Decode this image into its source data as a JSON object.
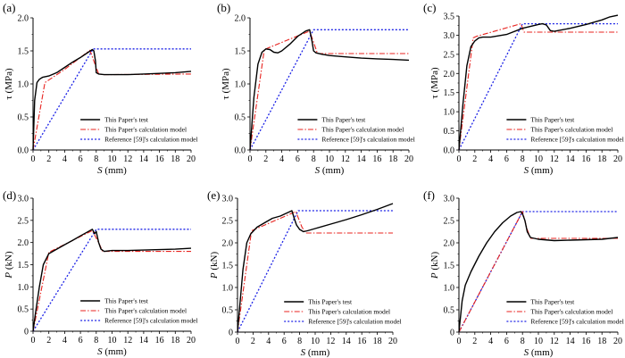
{
  "legend_labels": {
    "test": "This Paper's test",
    "model": "This Paper's calculation model",
    "ref": "Reference [59]'s calculation model"
  },
  "series_styles": {
    "test": {
      "color": "#000000",
      "dash": "none",
      "width": 1.4
    },
    "model": {
      "color": "#e8231f",
      "dash": "6,2,1.5,2",
      "width": 1.1
    },
    "ref": {
      "color": "#1d23e6",
      "dash": "2,2",
      "width": 1.3
    }
  },
  "chart_data": [
    {
      "panel_label": "(a)",
      "type": "line",
      "xlabel_italic": "S",
      "xlabel_unit": " (mm)",
      "ylabel_italic": "",
      "ylabel": "τ (MPa)",
      "xlim": [
        0,
        20
      ],
      "ylim": [
        0,
        2.0
      ],
      "xticks": [
        "0",
        "2",
        "4",
        "6",
        "8",
        "10",
        "12",
        "14",
        "16",
        "18",
        "20"
      ],
      "yticks": [
        "0.0",
        "0.5",
        "1.0",
        "1.5",
        "2.0"
      ],
      "legend_location": "lower-right",
      "series": [
        {
          "name": "test",
          "x": [
            0,
            0.2,
            0.5,
            0.8,
            1.2,
            2,
            3,
            4,
            5,
            6,
            7,
            7.5,
            7.7,
            7.9,
            8,
            8.3,
            9,
            10,
            12,
            14,
            16,
            18,
            19,
            20
          ],
          "y": [
            0,
            0.75,
            1.02,
            1.07,
            1.1,
            1.12,
            1.17,
            1.25,
            1.33,
            1.4,
            1.48,
            1.52,
            1.5,
            1.35,
            1.17,
            1.15,
            1.14,
            1.14,
            1.14,
            1.15,
            1.16,
            1.17,
            1.18,
            1.19
          ]
        },
        {
          "name": "model",
          "x": [
            0,
            1.5,
            2,
            4,
            7.2,
            8.3,
            9,
            20
          ],
          "y": [
            0,
            1.02,
            1.06,
            1.22,
            1.51,
            1.15,
            1.14,
            1.15
          ]
        },
        {
          "name": "ref",
          "x": [
            0,
            7.6,
            20
          ],
          "y": [
            0,
            1.53,
            1.53
          ]
        }
      ]
    },
    {
      "panel_label": "(b)",
      "type": "line",
      "xlabel_italic": "S",
      "xlabel_unit": " (mm)",
      "ylabel_italic": "",
      "ylabel": "τ (MPa)",
      "xlim": [
        0,
        20
      ],
      "ylim": [
        0,
        2.0
      ],
      "xticks": [
        "0",
        "2",
        "4",
        "6",
        "8",
        "10",
        "12",
        "14",
        "16",
        "18",
        "20"
      ],
      "yticks": [
        "0.0",
        "0.5",
        "1.0",
        "1.5",
        "2.0"
      ],
      "legend_location": "lower-right",
      "series": [
        {
          "name": "test",
          "x": [
            0,
            0.5,
            1,
            1.5,
            2,
            2.5,
            3,
            3.5,
            4,
            5,
            6,
            7,
            7.5,
            7.8,
            8,
            8.3,
            9,
            10,
            12,
            14,
            16,
            18,
            20
          ],
          "y": [
            0,
            0.8,
            1.3,
            1.48,
            1.53,
            1.52,
            1.48,
            1.47,
            1.5,
            1.6,
            1.72,
            1.8,
            1.82,
            1.65,
            1.5,
            1.47,
            1.45,
            1.43,
            1.41,
            1.39,
            1.38,
            1.37,
            1.36
          ]
        },
        {
          "name": "model",
          "x": [
            0,
            1.8,
            2.2,
            7.5,
            8.5,
            9,
            20
          ],
          "y": [
            0,
            1.52,
            1.54,
            1.8,
            1.46,
            1.46,
            1.46
          ]
        },
        {
          "name": "ref",
          "x": [
            0,
            8,
            20
          ],
          "y": [
            0,
            1.82,
            1.82
          ]
        }
      ]
    },
    {
      "panel_label": "(c)",
      "type": "line",
      "xlabel_italic": "S",
      "xlabel_unit": " (mm)",
      "ylabel_italic": "",
      "ylabel": "τ (MPa)",
      "xlim": [
        0,
        20
      ],
      "ylim": [
        0,
        3.5
      ],
      "xticks": [
        "0",
        "2",
        "4",
        "6",
        "8",
        "10",
        "12",
        "14",
        "16",
        "18",
        "20"
      ],
      "yticks": [
        "0.0",
        "0.5",
        "1.0",
        "1.5",
        "2.0",
        "2.5",
        "3.0",
        "3.5"
      ],
      "legend_location": "lower-right",
      "series": [
        {
          "name": "test",
          "x": [
            0,
            0.5,
            1,
            1.5,
            2,
            2.5,
            3,
            4,
            6,
            8,
            10,
            10.5,
            11,
            11.5,
            12,
            14,
            16,
            18,
            19,
            20
          ],
          "y": [
            0,
            1.2,
            2.2,
            2.7,
            2.85,
            2.93,
            2.95,
            2.95,
            3.02,
            3.18,
            3.28,
            3.3,
            3.27,
            3.12,
            3.1,
            3.18,
            3.28,
            3.4,
            3.48,
            3.52
          ]
        },
        {
          "name": "model",
          "x": [
            0,
            1.8,
            2.2,
            7.8,
            8.2,
            20
          ],
          "y": [
            0,
            2.93,
            2.97,
            3.3,
            3.08,
            3.08
          ]
        },
        {
          "name": "ref",
          "x": [
            0,
            8,
            20
          ],
          "y": [
            0,
            3.3,
            3.3
          ]
        }
      ]
    },
    {
      "panel_label": "(d)",
      "type": "line",
      "xlabel_italic": "S",
      "xlabel_unit": " (mm)",
      "ylabel_italic": "P",
      "ylabel": " (kN)",
      "xlim": [
        0,
        20
      ],
      "ylim": [
        0,
        3.0
      ],
      "xticks": [
        "0",
        "2",
        "4",
        "6",
        "8",
        "10",
        "12",
        "14",
        "16",
        "18",
        "20"
      ],
      "yticks": [
        "0",
        "0.5",
        "1.0",
        "1.5",
        "2.0",
        "2.5",
        "3.0"
      ],
      "legend_location": "lower-right",
      "series": [
        {
          "name": "test",
          "x": [
            0,
            0.3,
            0.8,
            1.3,
            2,
            3,
            4,
            5,
            6,
            7,
            7.5,
            7.8,
            8,
            8.3,
            8.6,
            9,
            10,
            12,
            14,
            16,
            18,
            20
          ],
          "y": [
            0,
            0.4,
            1.0,
            1.5,
            1.75,
            1.85,
            1.95,
            2.05,
            2.15,
            2.25,
            2.3,
            2.2,
            2.25,
            2.0,
            1.85,
            1.8,
            1.82,
            1.82,
            1.83,
            1.84,
            1.85,
            1.87
          ]
        },
        {
          "name": "model",
          "x": [
            0,
            2,
            7.5,
            8.3,
            8.8,
            20
          ],
          "y": [
            0,
            1.78,
            2.27,
            2.0,
            1.8,
            1.8
          ]
        },
        {
          "name": "ref",
          "x": [
            0,
            8,
            20
          ],
          "y": [
            0,
            2.3,
            2.3
          ]
        }
      ]
    },
    {
      "panel_label": "(e)",
      "type": "line",
      "xlabel_italic": "S",
      "xlabel_unit": " (mm)",
      "ylabel_italic": "P",
      "ylabel": " (kN)",
      "xlim": [
        0,
        20
      ],
      "ylim": [
        0,
        3.0
      ],
      "xticks": [
        "0",
        "2",
        "4",
        "6",
        "8",
        "10",
        "12",
        "14",
        "16",
        "18",
        "20"
      ],
      "yticks": [
        "0",
        "0.5",
        "1.0",
        "1.5",
        "2.0",
        "2.5",
        "3.0"
      ],
      "legend_location": "lower-right",
      "series": [
        {
          "name": "test",
          "x": [
            0,
            0.3,
            0.7,
            1.2,
            1.7,
            2.5,
            3.5,
            4.5,
            5.5,
            6.5,
            7,
            7.3,
            7.6,
            8,
            8.5,
            9,
            10,
            12,
            14,
            16,
            18,
            20
          ],
          "y": [
            0,
            0.6,
            1.4,
            2.0,
            2.2,
            2.35,
            2.45,
            2.55,
            2.6,
            2.68,
            2.72,
            2.55,
            2.4,
            2.3,
            2.25,
            2.27,
            2.32,
            2.42,
            2.52,
            2.63,
            2.75,
            2.88
          ]
        },
        {
          "name": "model",
          "x": [
            0,
            1.8,
            2.2,
            7.5,
            8.3,
            8.8,
            20
          ],
          "y": [
            0,
            2.27,
            2.3,
            2.7,
            2.35,
            2.22,
            2.22
          ]
        },
        {
          "name": "ref",
          "x": [
            0,
            7.8,
            20
          ],
          "y": [
            0,
            2.72,
            2.72
          ]
        }
      ]
    },
    {
      "panel_label": "(f)",
      "type": "line",
      "xlabel_italic": "S",
      "xlabel_unit": " (mm)",
      "ylabel_italic": "P",
      "ylabel": " (kN)",
      "xlim": [
        0,
        20
      ],
      "ylim": [
        0,
        3.0
      ],
      "xticks": [
        "0",
        "2",
        "4",
        "6",
        "8",
        "10",
        "12",
        "14",
        "16",
        "18",
        "20"
      ],
      "yticks": [
        "0",
        "0.5",
        "1.0",
        "1.5",
        "2.0",
        "2.5",
        "3.0"
      ],
      "legend_location": "lower-right",
      "series": [
        {
          "name": "test",
          "x": [
            0,
            0.4,
            0.8,
            1.5,
            2.5,
            3.5,
            4.5,
            5.5,
            6.5,
            7.3,
            7.8,
            8,
            8.3,
            8.6,
            9,
            10,
            12,
            14,
            16,
            18,
            20
          ],
          "y": [
            0,
            0.7,
            1.05,
            1.35,
            1.7,
            2.0,
            2.25,
            2.45,
            2.6,
            2.68,
            2.7,
            2.65,
            2.5,
            2.25,
            2.12,
            2.08,
            2.05,
            2.06,
            2.07,
            2.08,
            2.12
          ]
        },
        {
          "name": "model",
          "x": [
            0,
            8,
            8.6,
            9,
            20
          ],
          "y": [
            0,
            2.7,
            2.3,
            2.1,
            2.1
          ]
        },
        {
          "name": "ref",
          "x": [
            0,
            8,
            20
          ],
          "y": [
            0,
            2.7,
            2.7
          ]
        }
      ]
    }
  ]
}
